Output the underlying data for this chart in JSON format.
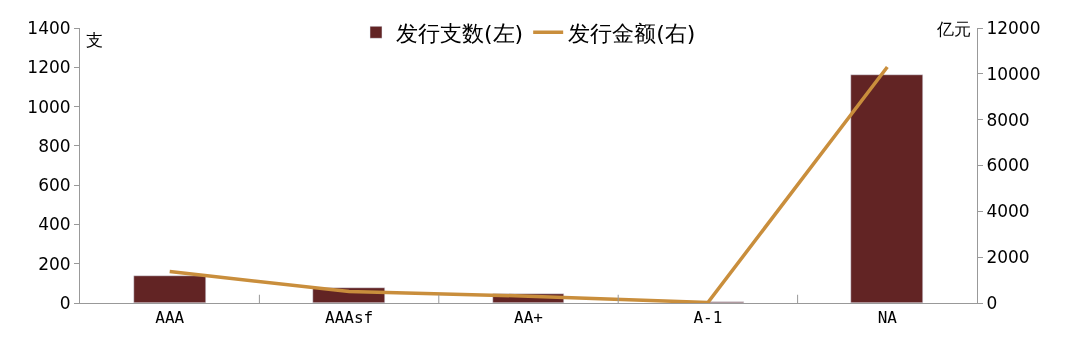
{
  "chart_data": {
    "type": "bar",
    "categories": [
      "AAA",
      "AAAsf",
      "AA+",
      "A-1",
      "NA"
    ],
    "ylabel": "支",
    "y2label": "亿元",
    "series": [
      {
        "name": "发行支数(左)",
        "color": "#622424",
        "values": [
          135,
          75,
          48,
          3,
          1160
        ]
      },
      {
        "name": "发行金额(右)",
        "type": "line",
        "axis": "y2",
        "color": "#c98e3c",
        "values": [
          1370,
          500,
          300,
          20,
          10300
        ]
      }
    ],
    "ylim": [
      0,
      1400
    ],
    "yticks": [
      0,
      200,
      400,
      600,
      800,
      1000,
      1200,
      1400
    ],
    "y2lim": [
      0,
      12000
    ],
    "y2ticks": [
      0,
      2000,
      4000,
      6000,
      8000,
      10000,
      12000
    ],
    "legend": "top",
    "grid": false,
    "marker": "none",
    "line_style": "solid"
  }
}
